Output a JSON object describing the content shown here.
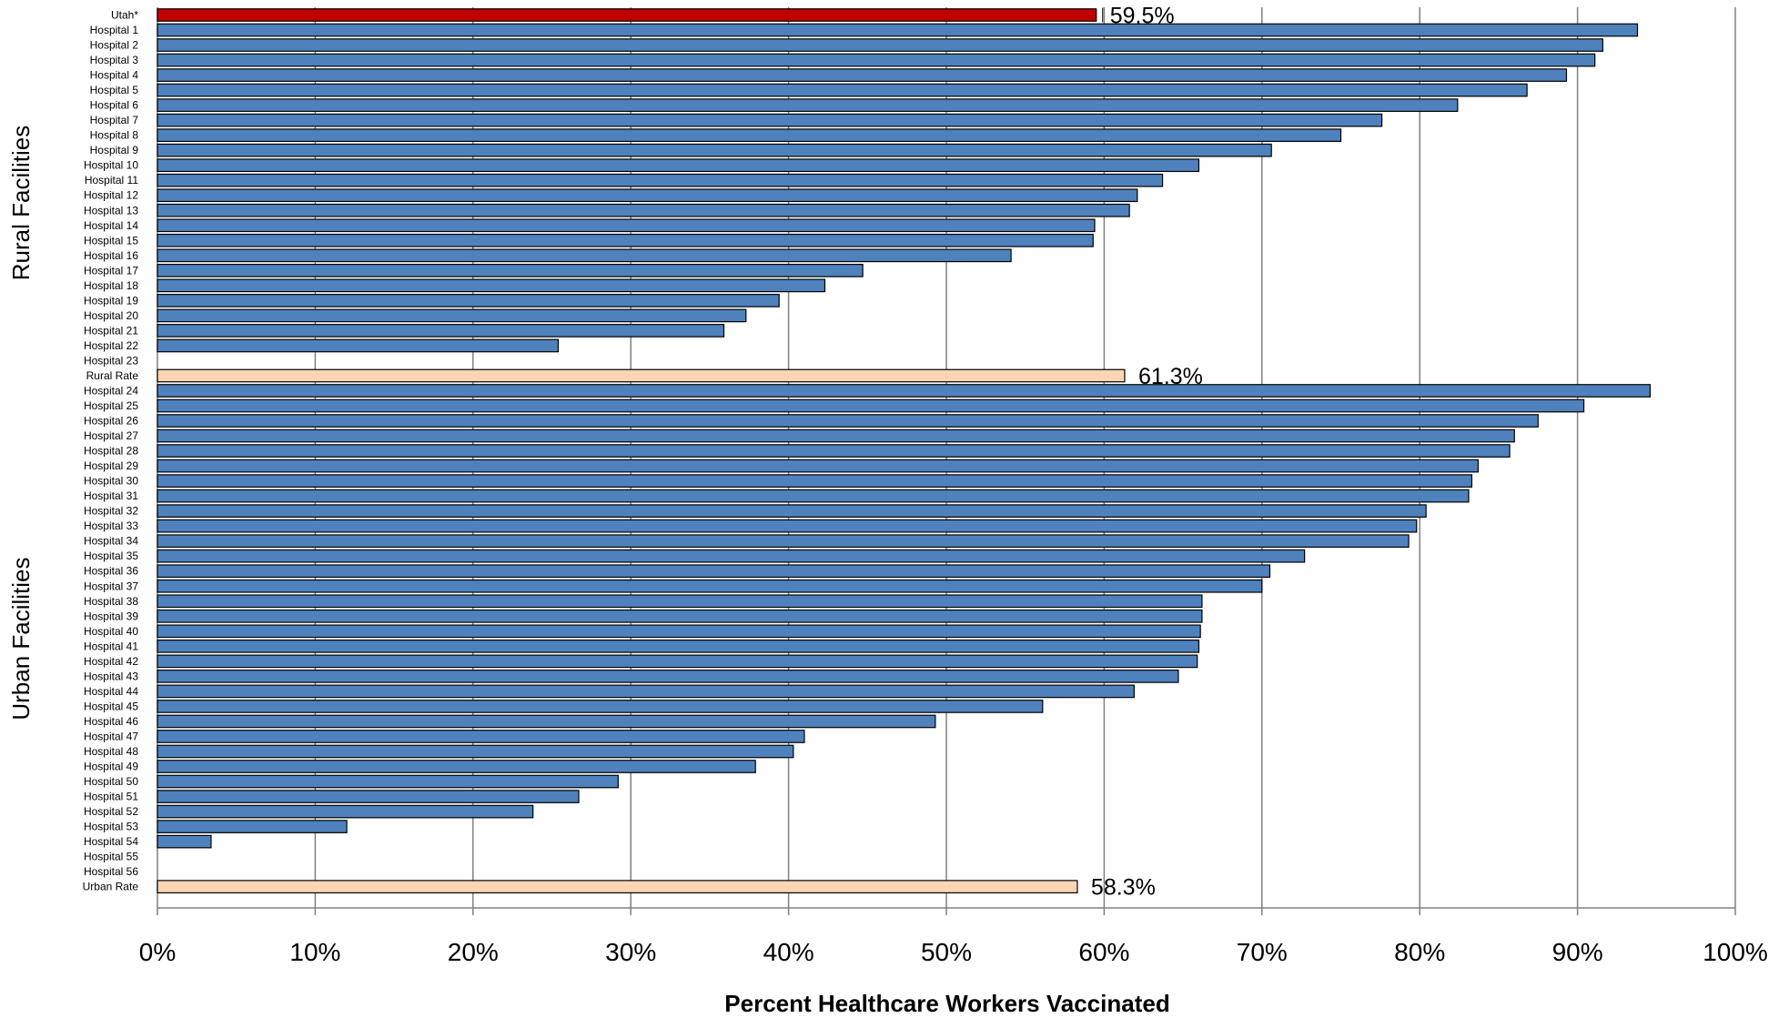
{
  "chart_data": {
    "type": "bar",
    "orientation": "horizontal",
    "xlabel": "Percent Healthcare Workers Vaccinated",
    "xlim": [
      0,
      100
    ],
    "x_ticks": [
      "0%",
      "10%",
      "20%",
      "30%",
      "40%",
      "50%",
      "60%",
      "70%",
      "80%",
      "90%",
      "100%"
    ],
    "grid": "vertical",
    "colors": {
      "hospital": "#4f81bd",
      "state": "#c00000",
      "aggregate": "#fcd5b5",
      "outline": "#000000",
      "grid": "#808080"
    },
    "groups": [
      {
        "label": "",
        "rows": [
          {
            "label": "Utah*",
            "value": 59.5,
            "kind": "state",
            "value_label": "59.5%"
          }
        ]
      },
      {
        "label": "Rural Facilities",
        "rows": [
          {
            "label": "Hospital 1",
            "value": 93.8,
            "kind": "hospital"
          },
          {
            "label": "Hospital 2",
            "value": 91.6,
            "kind": "hospital"
          },
          {
            "label": "Hospital 3",
            "value": 91.1,
            "kind": "hospital"
          },
          {
            "label": "Hospital 4",
            "value": 89.3,
            "kind": "hospital"
          },
          {
            "label": "Hospital 5",
            "value": 86.8,
            "kind": "hospital"
          },
          {
            "label": "Hospital 6",
            "value": 82.4,
            "kind": "hospital"
          },
          {
            "label": "Hospital 7",
            "value": 77.6,
            "kind": "hospital"
          },
          {
            "label": "Hospital 8",
            "value": 75.0,
            "kind": "hospital"
          },
          {
            "label": "Hospital 9",
            "value": 70.6,
            "kind": "hospital"
          },
          {
            "label": "Hospital 10",
            "value": 66.0,
            "kind": "hospital"
          },
          {
            "label": "Hospital 11",
            "value": 63.7,
            "kind": "hospital"
          },
          {
            "label": "Hospital 12",
            "value": 62.1,
            "kind": "hospital"
          },
          {
            "label": "Hospital 13",
            "value": 61.6,
            "kind": "hospital"
          },
          {
            "label": "Hospital 14",
            "value": 59.4,
            "kind": "hospital"
          },
          {
            "label": "Hospital 15",
            "value": 59.3,
            "kind": "hospital"
          },
          {
            "label": "Hospital 16",
            "value": 54.1,
            "kind": "hospital"
          },
          {
            "label": "Hospital 17",
            "value": 44.7,
            "kind": "hospital"
          },
          {
            "label": "Hospital 18",
            "value": 42.3,
            "kind": "hospital"
          },
          {
            "label": "Hospital 19",
            "value": 39.4,
            "kind": "hospital"
          },
          {
            "label": "Hospital 20",
            "value": 37.3,
            "kind": "hospital"
          },
          {
            "label": "Hospital 21",
            "value": 35.9,
            "kind": "hospital"
          },
          {
            "label": "Hospital 22",
            "value": 25.4,
            "kind": "hospital"
          },
          {
            "label": "Hospital 23",
            "value": null,
            "kind": "hospital"
          },
          {
            "label": "Rural Rate",
            "value": 61.3,
            "kind": "aggregate",
            "value_label": "61.3%"
          }
        ]
      },
      {
        "label": "Urban Facilities",
        "rows": [
          {
            "label": "Hospital 24",
            "value": 94.6,
            "kind": "hospital"
          },
          {
            "label": "Hospital 25",
            "value": 90.4,
            "kind": "hospital"
          },
          {
            "label": "Hospital 26",
            "value": 87.5,
            "kind": "hospital"
          },
          {
            "label": "Hospital 27",
            "value": 86.0,
            "kind": "hospital"
          },
          {
            "label": "Hospital 28",
            "value": 85.7,
            "kind": "hospital"
          },
          {
            "label": "Hospital 29",
            "value": 83.7,
            "kind": "hospital"
          },
          {
            "label": "Hospital 30",
            "value": 83.3,
            "kind": "hospital"
          },
          {
            "label": "Hospital 31",
            "value": 83.1,
            "kind": "hospital"
          },
          {
            "label": "Hospital 32",
            "value": 80.4,
            "kind": "hospital"
          },
          {
            "label": "Hospital 33",
            "value": 79.8,
            "kind": "hospital"
          },
          {
            "label": "Hospital 34",
            "value": 79.3,
            "kind": "hospital"
          },
          {
            "label": "Hospital 35",
            "value": 72.7,
            "kind": "hospital"
          },
          {
            "label": "Hospital 36",
            "value": 70.5,
            "kind": "hospital"
          },
          {
            "label": "Hospital 37",
            "value": 70.0,
            "kind": "hospital"
          },
          {
            "label": "Hospital 38",
            "value": 66.2,
            "kind": "hospital"
          },
          {
            "label": "Hospital 39",
            "value": 66.2,
            "kind": "hospital"
          },
          {
            "label": "Hospital 40",
            "value": 66.1,
            "kind": "hospital"
          },
          {
            "label": "Hospital 41",
            "value": 66.0,
            "kind": "hospital"
          },
          {
            "label": "Hospital 42",
            "value": 65.9,
            "kind": "hospital"
          },
          {
            "label": "Hospital 43",
            "value": 64.7,
            "kind": "hospital"
          },
          {
            "label": "Hospital 44",
            "value": 61.9,
            "kind": "hospital"
          },
          {
            "label": "Hospital 45",
            "value": 56.1,
            "kind": "hospital"
          },
          {
            "label": "Hospital 46",
            "value": 49.3,
            "kind": "hospital"
          },
          {
            "label": "Hospital 47",
            "value": 41.0,
            "kind": "hospital"
          },
          {
            "label": "Hospital 48",
            "value": 40.3,
            "kind": "hospital"
          },
          {
            "label": "Hospital 49",
            "value": 37.9,
            "kind": "hospital"
          },
          {
            "label": "Hospital 50",
            "value": 29.2,
            "kind": "hospital"
          },
          {
            "label": "Hospital 51",
            "value": 26.7,
            "kind": "hospital"
          },
          {
            "label": "Hospital 52",
            "value": 23.8,
            "kind": "hospital"
          },
          {
            "label": "Hospital 53",
            "value": 12.0,
            "kind": "hospital"
          },
          {
            "label": "Hospital 54",
            "value": 3.4,
            "kind": "hospital"
          },
          {
            "label": "Hospital 55",
            "value": null,
            "kind": "hospital"
          },
          {
            "label": "Hospital 56",
            "value": null,
            "kind": "hospital"
          },
          {
            "label": "Urban Rate",
            "value": 58.3,
            "kind": "aggregate",
            "value_label": "58.3%"
          }
        ]
      }
    ]
  }
}
